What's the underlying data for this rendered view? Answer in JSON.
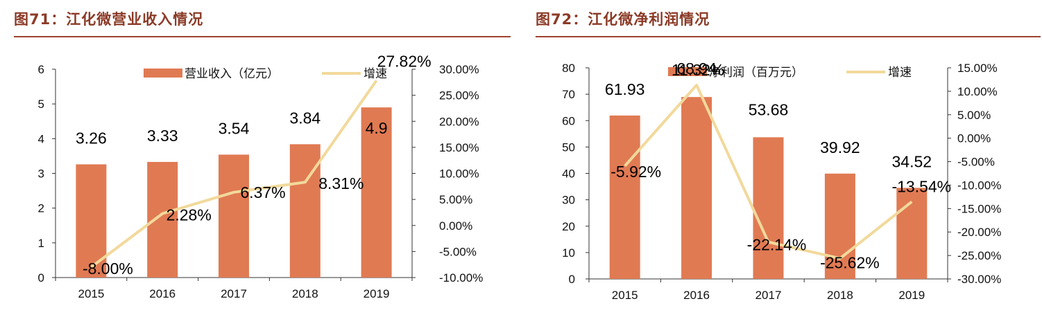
{
  "colors": {
    "bar": "#e07a53",
    "line": "#f2d99b",
    "title": "#8b3a26",
    "axis": "#333333"
  },
  "panels": [
    {
      "title_prefix": "图71：",
      "title_text": "江化微营业收入情况"
    },
    {
      "title_prefix": "图72：",
      "title_text": "江化微净利润情况"
    }
  ],
  "chart_data": [
    {
      "type": "bar",
      "categories": [
        "2015",
        "2016",
        "2017",
        "2018",
        "2019"
      ],
      "series": [
        {
          "name": "营业收入（亿元）",
          "kind": "bar",
          "axis": "left",
          "values": [
            3.26,
            3.33,
            3.54,
            3.84,
            4.9
          ],
          "labels": [
            "3.26",
            "3.33",
            "3.54",
            "3.84",
            "4.9"
          ]
        },
        {
          "name": "增速",
          "kind": "line",
          "axis": "right",
          "values": [
            -8.0,
            2.28,
            6.37,
            8.31,
            27.82
          ],
          "labels": [
            "-8.00%",
            "2.28%",
            "6.37%",
            "8.31%",
            "27.82%"
          ]
        }
      ],
      "y_left": {
        "min": 0,
        "max": 6,
        "step": 1,
        "ticks": [
          "0",
          "1",
          "2",
          "3",
          "4",
          "5",
          "6"
        ]
      },
      "y_right": {
        "min": -10,
        "max": 30,
        "step": 5,
        "ticks": [
          "-10.00%",
          "-5.00%",
          "0.00%",
          "5.00%",
          "10.00%",
          "15.00%",
          "20.00%",
          "25.00%",
          "30.00%"
        ]
      },
      "legend": "top"
    },
    {
      "type": "bar",
      "categories": [
        "2015",
        "2016",
        "2017",
        "2018",
        "2019"
      ],
      "series": [
        {
          "name": "净利润（百万元）",
          "kind": "bar",
          "axis": "left",
          "values": [
            61.93,
            68.94,
            53.68,
            39.92,
            34.52
          ],
          "labels": [
            "61.93",
            "68.94",
            "53.68",
            "39.92",
            "34.52"
          ]
        },
        {
          "name": "增速",
          "kind": "line",
          "axis": "right",
          "values": [
            -5.92,
            11.32,
            -22.14,
            -25.62,
            -13.54
          ],
          "labels": [
            "-5.92%",
            "11.32%",
            "-22.14%",
            "-25.62%",
            "-13.54%"
          ]
        }
      ],
      "y_left": {
        "min": 0,
        "max": 80,
        "step": 10,
        "ticks": [
          "0",
          "10",
          "20",
          "30",
          "40",
          "50",
          "60",
          "70",
          "80"
        ]
      },
      "y_right": {
        "min": -30,
        "max": 15,
        "step": 5,
        "ticks": [
          "-30.00%",
          "-25.00%",
          "-20.00%",
          "-15.00%",
          "-10.00%",
          "-5.00%",
          "0.00%",
          "5.00%",
          "10.00%",
          "15.00%"
        ]
      },
      "legend": "top"
    }
  ]
}
